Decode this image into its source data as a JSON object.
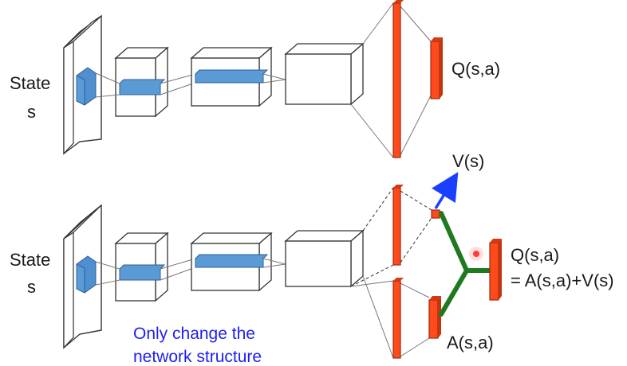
{
  "top_network": {
    "input_label": [
      "State",
      "s"
    ],
    "output_label": "Q(s,a)"
  },
  "bottom_network": {
    "input_label": [
      "State",
      "s"
    ],
    "value_label": "V(s)",
    "advantage_label": "A(s,a)",
    "output_label": [
      "Q(s,a)",
      "= A(s,a)+V(s)"
    ]
  },
  "caption": [
    "Only change the",
    "network structure"
  ],
  "colors": {
    "layer_fill": "#ff4a1c",
    "layer_stroke": "#9a2a10",
    "filter_fill": "#5b9bd5",
    "merge_branch": "#1f7a1f",
    "value_arrow": "#1a3fff",
    "caption": "#1f1ff0",
    "cursor_dot": "#ff3b3b"
  }
}
